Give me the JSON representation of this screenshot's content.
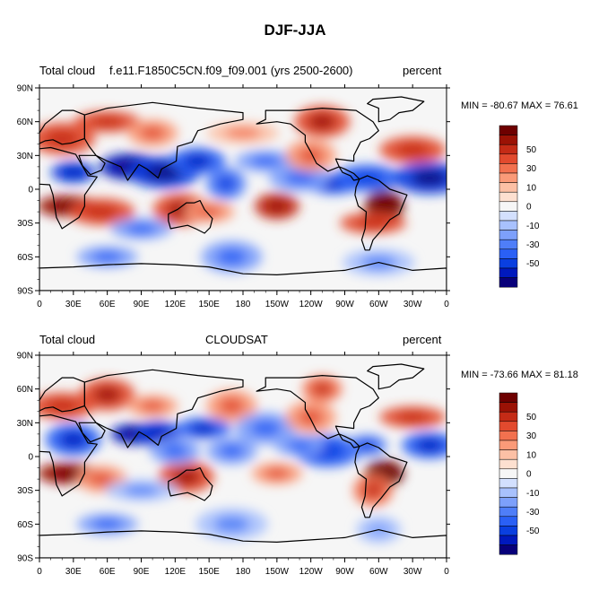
{
  "title": "DJF-JJA",
  "chart_data": [
    {
      "type": "heatmap",
      "variable": "Total cloud",
      "source": "f.e11.F1850C5CN.f09_f09.001 (yrs 2500-2600)",
      "units": "percent",
      "stats": "MIN = -80.67 MAX =  76.61",
      "x_ticks": [
        "0",
        "30E",
        "60E",
        "90E",
        "120E",
        "150E",
        "180",
        "150W",
        "120W",
        "90W",
        "60W",
        "30W",
        "0"
      ],
      "y_ticks": [
        "90N",
        "60N",
        "30N",
        "0",
        "30S",
        "60S",
        "90S"
      ],
      "xlim": [
        0,
        360
      ],
      "ylim": [
        -90,
        90
      ],
      "colorbar_labels": [
        "50",
        "30",
        "10",
        "0",
        "-10",
        "-30",
        "-50"
      ],
      "features": [
        {
          "lon": 25,
          "lat": -15,
          "value": 60
        },
        {
          "lon": 55,
          "lat": -20,
          "value": 40
        },
        {
          "lon": 125,
          "lat": -18,
          "value": 45
        },
        {
          "lon": 150,
          "lat": -20,
          "value": 30
        },
        {
          "lon": 210,
          "lat": -15,
          "value": 50
        },
        {
          "lon": 305,
          "lat": -15,
          "value": 70
        },
        {
          "lon": 295,
          "lat": -30,
          "value": 40
        },
        {
          "lon": 330,
          "lat": 35,
          "value": 40
        },
        {
          "lon": 250,
          "lat": 60,
          "value": 45
        },
        {
          "lon": 60,
          "lat": 60,
          "value": 40
        },
        {
          "lon": 100,
          "lat": 50,
          "value": 30
        },
        {
          "lon": 20,
          "lat": 45,
          "value": 40
        },
        {
          "lon": 180,
          "lat": 50,
          "value": 20
        },
        {
          "lon": 80,
          "lat": 20,
          "value": -60
        },
        {
          "lon": 110,
          "lat": 15,
          "value": -55
        },
        {
          "lon": 30,
          "lat": 15,
          "value": -50
        },
        {
          "lon": 140,
          "lat": 25,
          "value": -45
        },
        {
          "lon": 165,
          "lat": 5,
          "value": -35
        },
        {
          "lon": 260,
          "lat": 5,
          "value": -45
        },
        {
          "lon": 290,
          "lat": 10,
          "value": -40
        },
        {
          "lon": 345,
          "lat": 10,
          "value": -55
        },
        {
          "lon": 200,
          "lat": 25,
          "value": -25
        },
        {
          "lon": 230,
          "lat": 10,
          "value": -25
        },
        {
          "lon": 170,
          "lat": -60,
          "value": -25
        },
        {
          "lon": 60,
          "lat": -60,
          "value": -25
        },
        {
          "lon": 300,
          "lat": -65,
          "value": -20
        },
        {
          "lon": 240,
          "lat": 30,
          "value": 30
        },
        {
          "lon": 90,
          "lat": -35,
          "value": -25
        }
      ]
    },
    {
      "type": "heatmap",
      "variable": "Total cloud",
      "source": "CLOUDSAT",
      "units": "percent",
      "stats": "MIN = -73.66 MAX =  81.18",
      "x_ticks": [
        "0",
        "30E",
        "60E",
        "90E",
        "120E",
        "150E",
        "180",
        "150W",
        "120W",
        "90W",
        "60W",
        "30W",
        "0"
      ],
      "y_ticks": [
        "90N",
        "60N",
        "30N",
        "0",
        "30S",
        "60S",
        "90S"
      ],
      "xlim": [
        0,
        360
      ],
      "ylim": [
        -90,
        90
      ],
      "colorbar_labels": [
        "50",
        "30",
        "10",
        "0",
        "-10",
        "-30",
        "-50"
      ],
      "features": [
        {
          "lon": 25,
          "lat": -15,
          "value": 60
        },
        {
          "lon": 55,
          "lat": -20,
          "value": 30
        },
        {
          "lon": 130,
          "lat": -18,
          "value": 45
        },
        {
          "lon": 210,
          "lat": -15,
          "value": 30
        },
        {
          "lon": 305,
          "lat": -15,
          "value": 70
        },
        {
          "lon": 295,
          "lat": -30,
          "value": 35
        },
        {
          "lon": 330,
          "lat": 35,
          "value": 40
        },
        {
          "lon": 250,
          "lat": 60,
          "value": 35
        },
        {
          "lon": 60,
          "lat": 55,
          "value": 45
        },
        {
          "lon": 100,
          "lat": 45,
          "value": 30
        },
        {
          "lon": 20,
          "lat": 45,
          "value": 40
        },
        {
          "lon": 170,
          "lat": 45,
          "value": 30
        },
        {
          "lon": 85,
          "lat": 20,
          "value": -65
        },
        {
          "lon": 105,
          "lat": 20,
          "value": -50
        },
        {
          "lon": 30,
          "lat": 15,
          "value": -45
        },
        {
          "lon": 145,
          "lat": 25,
          "value": -45
        },
        {
          "lon": 170,
          "lat": 5,
          "value": -30
        },
        {
          "lon": 255,
          "lat": 5,
          "value": -40
        },
        {
          "lon": 290,
          "lat": 10,
          "value": -35
        },
        {
          "lon": 345,
          "lat": 10,
          "value": -45
        },
        {
          "lon": 200,
          "lat": 25,
          "value": -25
        },
        {
          "lon": 230,
          "lat": 10,
          "value": -30
        },
        {
          "lon": 120,
          "lat": 5,
          "value": -30
        },
        {
          "lon": 170,
          "lat": -60,
          "value": -20
        },
        {
          "lon": 60,
          "lat": -60,
          "value": -25
        },
        {
          "lon": 300,
          "lat": -65,
          "value": -15
        },
        {
          "lon": 240,
          "lat": 35,
          "value": 30
        },
        {
          "lon": 90,
          "lat": -30,
          "value": -20
        }
      ]
    }
  ],
  "palette": [
    "#08007a",
    "#0019bd",
    "#0a3fe0",
    "#2a60f5",
    "#4f7ef8",
    "#7da0fb",
    "#a8c1fd",
    "#d3e0fe",
    "#f6f6f6",
    "#fde0d0",
    "#fcc0a5",
    "#fa9a78",
    "#f2714f",
    "#e24a2e",
    "#c42b16",
    "#9b1205",
    "#6e0000"
  ]
}
